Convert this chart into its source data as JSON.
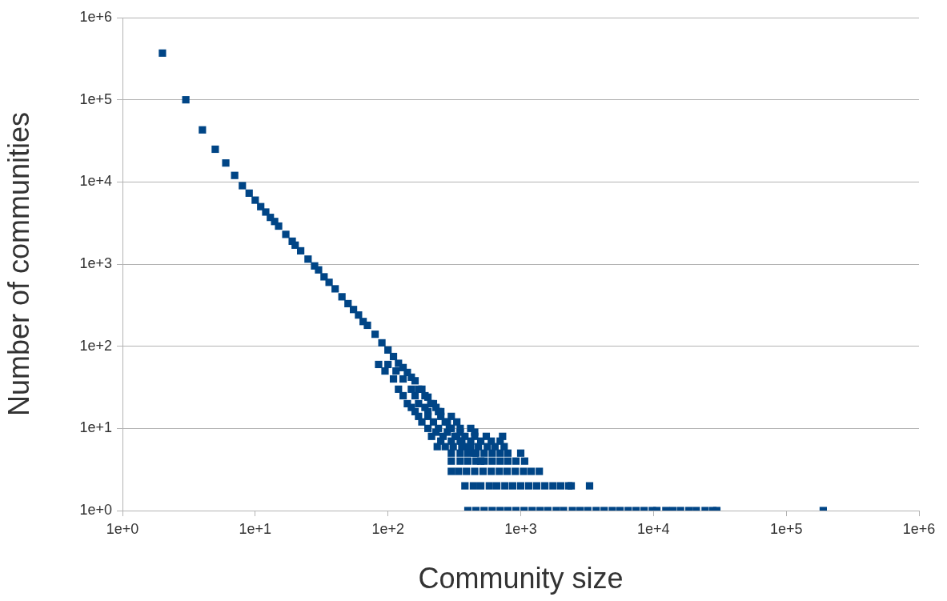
{
  "chart_data": {
    "type": "scatter",
    "xlabel": "Community size",
    "ylabel": "Number of communities",
    "log": "xy",
    "grid": "y",
    "legend": false,
    "marker": "square",
    "xlim": [
      1,
      1000000
    ],
    "ylim": [
      1,
      1000000
    ],
    "xticks": [
      {
        "value": 1,
        "label": "1e+0"
      },
      {
        "value": 10,
        "label": "1e+1"
      },
      {
        "value": 100,
        "label": "1e+2"
      },
      {
        "value": 1000,
        "label": "1e+3"
      },
      {
        "value": 10000,
        "label": "1e+4"
      },
      {
        "value": 100000,
        "label": "1e+5"
      },
      {
        "value": 1000000,
        "label": "1e+6"
      }
    ],
    "yticks": [
      {
        "value": 1,
        "label": "1e+0"
      },
      {
        "value": 10,
        "label": "1e+1"
      },
      {
        "value": 100,
        "label": "1e+2"
      },
      {
        "value": 1000,
        "label": "1e+3"
      },
      {
        "value": 10000,
        "label": "1e+4"
      },
      {
        "value": 100000,
        "label": "1e+5"
      },
      {
        "value": 1000000,
        "label": "1e+6"
      }
    ],
    "series": [
      {
        "color": "#004586",
        "x": [
          2,
          3,
          4,
          5,
          6,
          7,
          8,
          9,
          10,
          11,
          12,
          13,
          14,
          15,
          17,
          19,
          20,
          22,
          25,
          28,
          30,
          33,
          36,
          40,
          45,
          50,
          55,
          60,
          65,
          70,
          80,
          90,
          100,
          110,
          120,
          130,
          140,
          150,
          160,
          180,
          200,
          220,
          250,
          280,
          300,
          330,
          360,
          400,
          450,
          500,
          130,
          160,
          190,
          120,
          150,
          170,
          110,
          130,
          95,
          115,
          85,
          100,
          140,
          170,
          210,
          150,
          190,
          230,
          160,
          200,
          240,
          170,
          200,
          250,
          300,
          180,
          220,
          270,
          330,
          200,
          240,
          290,
          350,
          420,
          230,
          280,
          350,
          450,
          213,
          260,
          320,
          380,
          450,
          550,
          730,
          250,
          300,
          350,
          420,
          500,
          600,
          700,
          235,
          270,
          310,
          360,
          420,
          480,
          560,
          640,
          750,
          300,
          350,
          400,
          460,
          530,
          610,
          700,
          800,
          1000,
          300,
          350,
          400,
          460,
          530,
          610,
          700,
          800,
          920,
          1070,
          300,
          340,
          390,
          450,
          520,
          600,
          690,
          790,
          910,
          1050,
          1200,
          1380,
          380,
          440,
          500,
          580,
          660,
          760,
          870,
          1000,
          1150,
          1320,
          1520,
          1750,
          2000,
          2300,
          2400,
          3300,
          400,
          460,
          530,
          610,
          700,
          800,
          920,
          1060,
          1220,
          1400,
          1600,
          1850,
          2100,
          2450,
          2800,
          3200,
          3700,
          4250,
          4900,
          5600,
          6450,
          7400,
          8500,
          9800,
          10600,
          12400,
          14000,
          16000,
          18500,
          21000,
          24500,
          28000,
          30000,
          190000
        ],
        "values": [
          370000,
          100000,
          43000,
          25000,
          17000,
          12000,
          9000,
          7300,
          6000,
          5000,
          4300,
          3700,
          3300,
          2900,
          2300,
          1900,
          1700,
          1450,
          1150,
          950,
          850,
          700,
          600,
          500,
          400,
          330,
          280,
          240,
          200,
          180,
          140,
          110,
          90,
          75,
          62,
          55,
          48,
          42,
          38,
          30,
          24,
          20,
          16,
          12,
          10,
          8,
          7,
          6,
          5,
          4,
          25,
          25,
          25,
          30,
          30,
          30,
          40,
          40,
          50,
          50,
          60,
          60,
          20,
          20,
          20,
          18,
          18,
          18,
          16,
          16,
          16,
          14,
          14,
          14,
          14,
          12,
          12,
          12,
          12,
          10,
          10,
          10,
          10,
          10,
          9,
          9,
          9,
          9,
          8,
          8,
          8,
          8,
          8,
          8,
          8,
          7,
          7,
          7,
          7,
          7,
          7,
          7,
          6,
          6,
          6,
          6,
          6,
          6,
          6,
          6,
          6,
          5,
          5,
          5,
          5,
          5,
          5,
          5,
          5,
          5,
          4,
          4,
          4,
          4,
          4,
          4,
          4,
          4,
          4,
          4,
          3,
          3,
          3,
          3,
          3,
          3,
          3,
          3,
          3,
          3,
          3,
          3,
          2,
          2,
          2,
          2,
          2,
          2,
          2,
          2,
          2,
          2,
          2,
          2,
          2,
          2,
          2,
          2,
          1,
          1,
          1,
          1,
          1,
          1,
          1,
          1,
          1,
          1,
          1,
          1,
          1,
          1,
          1,
          1,
          1,
          1,
          1,
          1,
          1,
          1,
          1,
          1,
          1,
          1,
          1,
          1,
          1,
          1,
          1,
          1,
          1,
          1
        ]
      }
    ]
  }
}
